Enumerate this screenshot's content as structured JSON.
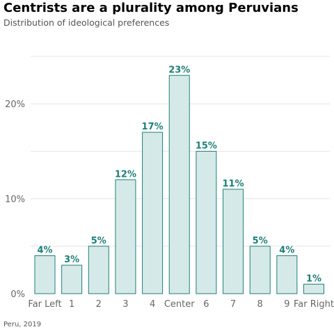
{
  "title": "Centrists are a plurality among Peruvians",
  "subtitle": "Distribution of ideological preferences",
  "caption": "Peru, 2019",
  "chart_data": {
    "type": "bar",
    "categories": [
      "Far Left",
      "1",
      "2",
      "3",
      "4",
      "Center",
      "6",
      "7",
      "8",
      "9",
      "Far Right"
    ],
    "values": [
      4,
      3,
      5,
      12,
      17,
      23,
      15,
      11,
      5,
      4,
      1
    ],
    "value_labels": [
      "4%",
      "3%",
      "5%",
      "12%",
      "17%",
      "23%",
      "15%",
      "11%",
      "5%",
      "4%",
      "1%"
    ],
    "yticks": [
      0,
      10,
      20
    ],
    "ytick_labels": [
      "0%",
      "10%",
      "20%"
    ],
    "ylim": [
      0,
      25
    ],
    "grid": true,
    "colors": {
      "bar_fill": "#d5eae8",
      "bar_stroke": "#1e7e78",
      "label": "#1e7e78",
      "grid": "#e6e6e6"
    }
  }
}
